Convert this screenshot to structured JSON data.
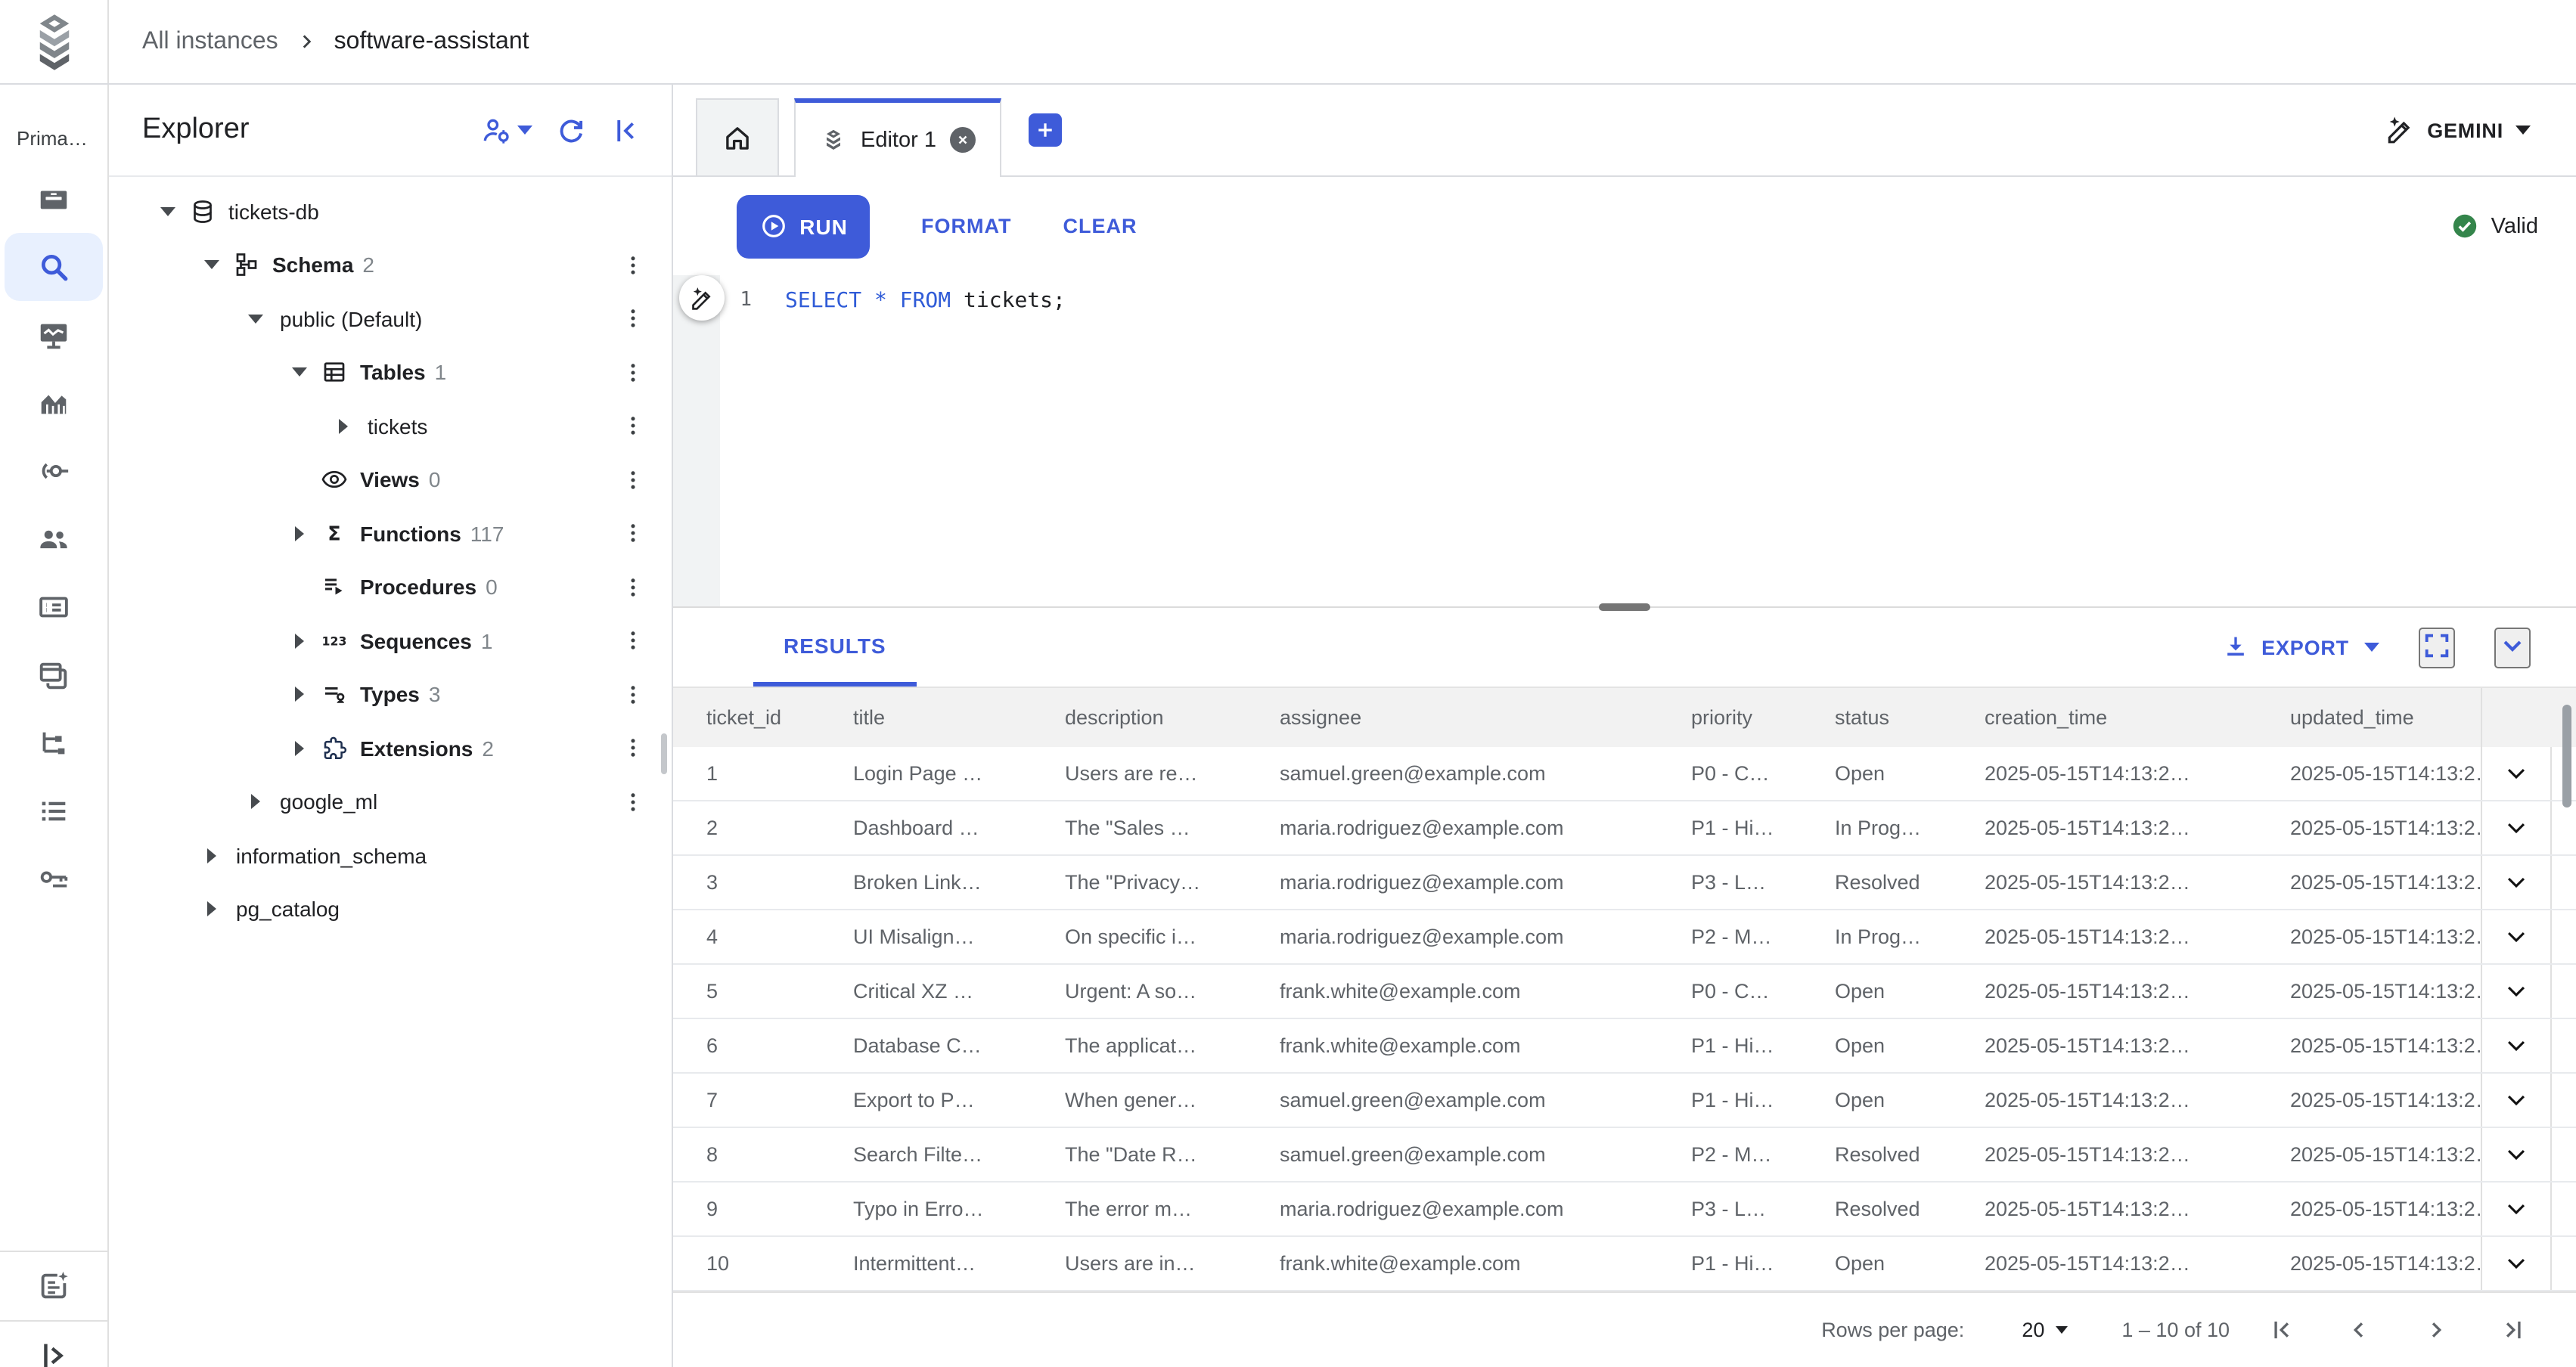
{
  "colors": {
    "accent": "#3E5BD9",
    "valid_green": "#34854b",
    "icon_gray": "#5f6368",
    "text_dark": "#202124",
    "text_gray": "#5f6368",
    "active_rail_bg": "#e8f0fe",
    "keyword_blue": "#2f5bd7"
  },
  "header": {
    "logo_icon": "layers-logo-icon",
    "breadcrumb": {
      "parent": "All instances",
      "current": "software-assistant"
    }
  },
  "rail": {
    "label": "Prima…",
    "items": [
      {
        "icon": "storage-icon",
        "active": false
      },
      {
        "icon": "search-icon",
        "active": true
      },
      {
        "icon": "monitoring-icon",
        "active": false
      },
      {
        "icon": "insights-chart-icon",
        "active": false
      },
      {
        "icon": "connections-icon",
        "active": false
      },
      {
        "icon": "users-icon",
        "active": false
      },
      {
        "icon": "card-list-icon",
        "active": false
      },
      {
        "icon": "windows-icon",
        "active": false
      },
      {
        "icon": "tree-branch-icon",
        "active": false
      },
      {
        "icon": "list-icon",
        "active": false
      },
      {
        "icon": "key-icon",
        "active": false
      }
    ],
    "bottom_items": [
      {
        "icon": "ai-note-icon"
      },
      {
        "icon": "expand-panel-icon"
      }
    ]
  },
  "explorer": {
    "title": "Explorer",
    "actions": [
      "user-gear-icon",
      "refresh-icon",
      "collapse-panel-icon"
    ],
    "tree": [
      {
        "indent": 0,
        "arrow": "down",
        "icon": "db",
        "label": "tickets-db",
        "count": "",
        "bold": false,
        "kebab": false
      },
      {
        "indent": 1,
        "arrow": "down",
        "icon": "schema",
        "label": "Schema",
        "count": "2",
        "bold": true,
        "kebab": true
      },
      {
        "indent": 2,
        "arrow": "down",
        "icon": null,
        "label": "public (Default)",
        "count": "",
        "bold": false,
        "kebab": true
      },
      {
        "indent": 3,
        "arrow": "down",
        "icon": "table",
        "label": "Tables",
        "count": "1",
        "bold": true,
        "kebab": true
      },
      {
        "indent": 4,
        "arrow": "right",
        "icon": null,
        "label": "tickets",
        "count": "",
        "bold": false,
        "kebab": true
      },
      {
        "indent": 3,
        "arrow": null,
        "icon": "eye",
        "label": "Views",
        "count": "0",
        "bold": true,
        "kebab": true
      },
      {
        "indent": 3,
        "arrow": "right",
        "icon": "sigma",
        "label": "Functions",
        "count": "117",
        "bold": true,
        "kebab": true
      },
      {
        "indent": 3,
        "arrow": null,
        "icon": "proc",
        "label": "Procedures",
        "count": "0",
        "bold": true,
        "kebab": true
      },
      {
        "indent": 3,
        "arrow": "right",
        "icon": "seq",
        "label": "Sequences",
        "count": "1",
        "bold": true,
        "kebab": true
      },
      {
        "indent": 3,
        "arrow": "right",
        "icon": "types",
        "label": "Types",
        "count": "3",
        "bold": true,
        "kebab": true
      },
      {
        "indent": 3,
        "arrow": "right",
        "icon": "puzzle",
        "label": "Extensions",
        "count": "2",
        "bold": true,
        "kebab": true
      },
      {
        "indent": 2,
        "arrow": "right",
        "icon": null,
        "label": "google_ml",
        "count": "",
        "bold": false,
        "kebab": true
      },
      {
        "indent": 1,
        "arrow": "right",
        "icon": null,
        "label": "information_schema",
        "count": "",
        "bold": false,
        "kebab": false
      },
      {
        "indent": 1,
        "arrow": "right",
        "icon": null,
        "label": "pg_catalog",
        "count": "",
        "bold": false,
        "kebab": false
      }
    ]
  },
  "tabs": {
    "editor_label": "Editor 1",
    "gemini_label": "GEMINI"
  },
  "toolbar": {
    "run_label": "RUN",
    "format_label": "FORMAT",
    "clear_label": "CLEAR",
    "valid_label": "Valid"
  },
  "editor": {
    "line_number": "1",
    "code_keyword": "SELECT * FROM",
    "code_rest": " tickets;"
  },
  "results": {
    "tab_label": "RESULTS",
    "export_label": "EXPORT",
    "table": {
      "columns": [
        "ticket_id",
        "title",
        "description",
        "assignee",
        "priority",
        "status",
        "creation_time",
        "updated_time"
      ],
      "rows": [
        [
          "1",
          "Login Page …",
          "Users are re…",
          "samuel.green@example.com",
          "P0 - C…",
          "Open",
          "2025-05-15T14:13:2…",
          "2025-05-15T14:13:2…"
        ],
        [
          "2",
          "Dashboard …",
          "The \"Sales …",
          "maria.rodriguez@example.com",
          "P1 - Hi…",
          "In Prog…",
          "2025-05-15T14:13:2…",
          "2025-05-15T14:13:2…"
        ],
        [
          "3",
          "Broken Link…",
          "The \"Privacy…",
          "maria.rodriguez@example.com",
          "P3 - L…",
          "Resolved",
          "2025-05-15T14:13:2…",
          "2025-05-15T14:13:2…"
        ],
        [
          "4",
          "UI Misalign…",
          "On specific i…",
          "maria.rodriguez@example.com",
          "P2 - M…",
          "In Prog…",
          "2025-05-15T14:13:2…",
          "2025-05-15T14:13:2…"
        ],
        [
          "5",
          "Critical XZ …",
          "Urgent: A so…",
          "frank.white@example.com",
          "P0 - C…",
          "Open",
          "2025-05-15T14:13:2…",
          "2025-05-15T14:13:2…"
        ],
        [
          "6",
          "Database C…",
          "The applicat…",
          "frank.white@example.com",
          "P1 - Hi…",
          "Open",
          "2025-05-15T14:13:2…",
          "2025-05-15T14:13:2…"
        ],
        [
          "7",
          "Export to P…",
          "When gener…",
          "samuel.green@example.com",
          "P1 - Hi…",
          "Open",
          "2025-05-15T14:13:2…",
          "2025-05-15T14:13:2…"
        ],
        [
          "8",
          "Search Filte…",
          "The \"Date R…",
          "samuel.green@example.com",
          "P2 - M…",
          "Resolved",
          "2025-05-15T14:13:2…",
          "2025-05-15T14:13:2…"
        ],
        [
          "9",
          "Typo in Erro…",
          "The error m…",
          "maria.rodriguez@example.com",
          "P3 - L…",
          "Resolved",
          "2025-05-15T14:13:2…",
          "2025-05-15T14:13:2…"
        ],
        [
          "10",
          "Intermittent…",
          "Users are in…",
          "frank.white@example.com",
          "P1 - Hi…",
          "Open",
          "2025-05-15T14:13:2…",
          "2025-05-15T14:13:2…"
        ]
      ]
    },
    "pagination": {
      "label": "Rows per page:",
      "page_size": "20",
      "range": "1 – 10 of 10"
    }
  }
}
